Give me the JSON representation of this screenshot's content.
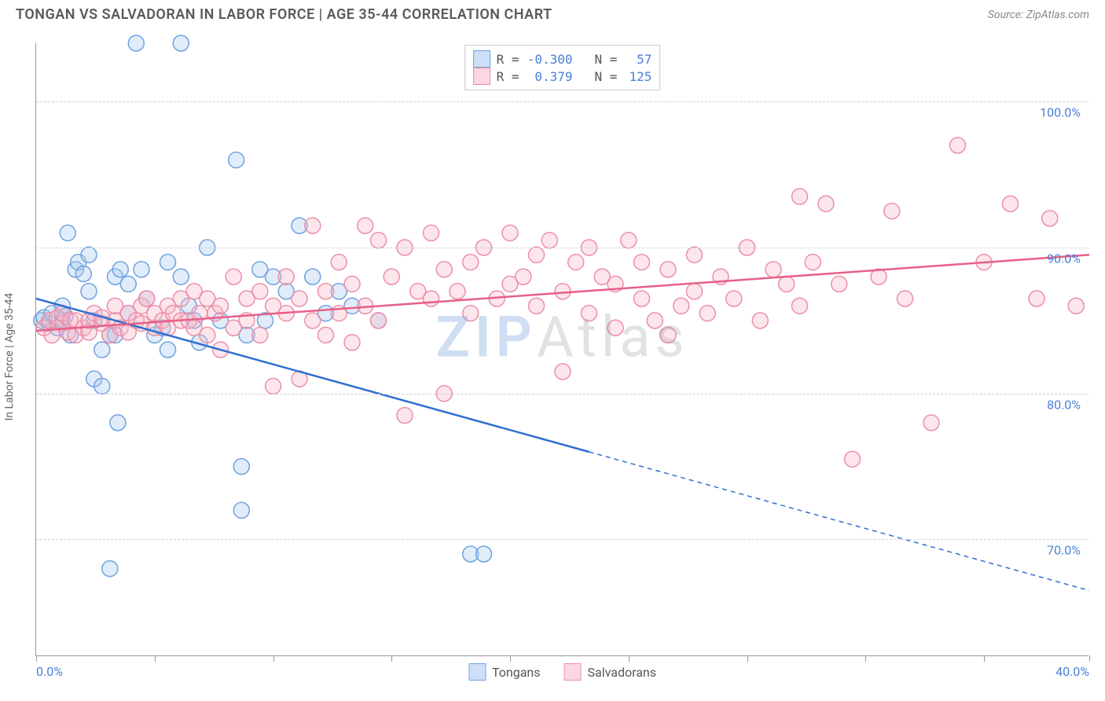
{
  "title": "TONGAN VS SALVADORAN IN LABOR FORCE | AGE 35-44 CORRELATION CHART",
  "source": "Source: ZipAtlas.com",
  "ylabel": "In Labor Force | Age 35-44",
  "watermark_z": "ZIP",
  "watermark_rest": "Atlas",
  "chart": {
    "type": "scatter",
    "background_color": "#ffffff",
    "grid_color": "#d0d0d0",
    "axis_color": "#999999",
    "xlim": [
      0,
      40
    ],
    "ylim": [
      62,
      104
    ],
    "xtick_positions": [
      0,
      4.5,
      9,
      13.5,
      18,
      22.5,
      27,
      31.5,
      36,
      40
    ],
    "xtick_labels": {
      "0": "0.0%",
      "40": "40.0%"
    },
    "ytick_positions": [
      70,
      80,
      90,
      100
    ],
    "ytick_labels": [
      "70.0%",
      "80.0%",
      "90.0%",
      "100.0%"
    ],
    "tick_label_color": "#4a7fd8",
    "tick_label_fontsize": 16,
    "marker_radius": 10,
    "series": [
      {
        "name": "Tongans",
        "color_fill": "#a9c8f0",
        "color_stroke": "#6fa3e0",
        "legend_sq_fill": "#cde0f7",
        "legend_sq_stroke": "#6fa3e0",
        "R": "-0.300",
        "N": "57",
        "trend": {
          "x1": 0,
          "y1": 86.5,
          "x2": 21,
          "y2": 76,
          "dash_to_x": 40,
          "dash_to_y": 66.5,
          "color": "#2f6fd0",
          "width": 2.5
        },
        "points": [
          [
            0.2,
            85.0
          ],
          [
            0.3,
            85.2
          ],
          [
            0.5,
            84.8
          ],
          [
            0.6,
            85.5
          ],
          [
            0.8,
            84.5
          ],
          [
            1.0,
            85.0
          ],
          [
            1.0,
            86.0
          ],
          [
            1.1,
            85.3
          ],
          [
            1.2,
            91.0
          ],
          [
            1.3,
            84.0
          ],
          [
            1.5,
            88.5
          ],
          [
            1.6,
            89.0
          ],
          [
            1.8,
            88.2
          ],
          [
            2.0,
            87.0
          ],
          [
            2.0,
            89.5
          ],
          [
            2.2,
            85.0
          ],
          [
            2.2,
            81.0
          ],
          [
            2.5,
            80.5
          ],
          [
            2.5,
            83.0
          ],
          [
            2.8,
            84.0
          ],
          [
            3.0,
            84.0
          ],
          [
            3.0,
            88.0
          ],
          [
            3.2,
            88.5
          ],
          [
            3.5,
            87.5
          ],
          [
            3.5,
            85.5
          ],
          [
            3.1,
            78.0
          ],
          [
            2.8,
            68.0
          ],
          [
            3.8,
            104.0
          ],
          [
            4.0,
            88.5
          ],
          [
            4.2,
            86.5
          ],
          [
            4.5,
            84.0
          ],
          [
            4.8,
            84.5
          ],
          [
            5.0,
            83.0
          ],
          [
            5.0,
            89.0
          ],
          [
            5.5,
            88.0
          ],
          [
            5.5,
            104.0
          ],
          [
            5.8,
            86.0
          ],
          [
            6.0,
            85.0
          ],
          [
            6.2,
            83.5
          ],
          [
            6.5,
            90.0
          ],
          [
            7.0,
            85.0
          ],
          [
            7.6,
            96.0
          ],
          [
            7.8,
            72.0
          ],
          [
            7.8,
            75.0
          ],
          [
            8.0,
            84.0
          ],
          [
            8.5,
            88.5
          ],
          [
            8.7,
            85.0
          ],
          [
            9.0,
            88.0
          ],
          [
            9.5,
            87.0
          ],
          [
            10.0,
            91.5
          ],
          [
            10.5,
            88.0
          ],
          [
            11.0,
            85.5
          ],
          [
            11.5,
            87.0
          ],
          [
            12.0,
            86.0
          ],
          [
            13.0,
            85.0
          ],
          [
            16.5,
            69.0
          ],
          [
            17.0,
            69.0
          ]
        ]
      },
      {
        "name": "Salvadorans",
        "color_fill": "#f7b8c8",
        "color_stroke": "#ec8fa8",
        "legend_sq_fill": "#fcd8e2",
        "legend_sq_stroke": "#ec8fa8",
        "R": "0.379",
        "N": "125",
        "trend": {
          "x1": 0,
          "y1": 84.3,
          "x2": 40,
          "y2": 89.5,
          "color": "#e85f87",
          "width": 2.5
        },
        "points": [
          [
            0.3,
            84.5
          ],
          [
            0.5,
            85.0
          ],
          [
            0.6,
            84.0
          ],
          [
            0.8,
            85.2
          ],
          [
            1.0,
            84.8
          ],
          [
            1.0,
            85.5
          ],
          [
            1.2,
            84.2
          ],
          [
            1.3,
            85.0
          ],
          [
            1.5,
            85.0
          ],
          [
            1.5,
            84.0
          ],
          [
            1.8,
            84.5
          ],
          [
            2.0,
            85.0
          ],
          [
            2.0,
            84.2
          ],
          [
            2.2,
            85.5
          ],
          [
            2.5,
            84.8
          ],
          [
            2.5,
            85.2
          ],
          [
            2.8,
            84.0
          ],
          [
            3.0,
            85.0
          ],
          [
            3.0,
            86.0
          ],
          [
            3.2,
            84.5
          ],
          [
            3.5,
            85.5
          ],
          [
            3.5,
            84.2
          ],
          [
            3.8,
            85.0
          ],
          [
            4.0,
            84.8
          ],
          [
            4.0,
            86.0
          ],
          [
            4.2,
            86.5
          ],
          [
            4.5,
            84.5
          ],
          [
            4.5,
            85.5
          ],
          [
            4.8,
            85.0
          ],
          [
            5.0,
            86.0
          ],
          [
            5.0,
            84.5
          ],
          [
            5.2,
            85.5
          ],
          [
            5.5,
            85.0
          ],
          [
            5.5,
            86.5
          ],
          [
            5.8,
            85.0
          ],
          [
            6.0,
            87.0
          ],
          [
            6.0,
            84.5
          ],
          [
            6.2,
            85.5
          ],
          [
            6.5,
            86.5
          ],
          [
            6.5,
            84.0
          ],
          [
            6.8,
            85.5
          ],
          [
            7.0,
            86.0
          ],
          [
            7.0,
            83.0
          ],
          [
            7.5,
            88.0
          ],
          [
            7.5,
            84.5
          ],
          [
            8.0,
            86.5
          ],
          [
            8.0,
            85.0
          ],
          [
            8.5,
            87.0
          ],
          [
            8.5,
            84.0
          ],
          [
            9.0,
            86.0
          ],
          [
            9.0,
            80.5
          ],
          [
            9.5,
            85.5
          ],
          [
            9.5,
            88.0
          ],
          [
            10.0,
            81.0
          ],
          [
            10.0,
            86.5
          ],
          [
            10.5,
            85.0
          ],
          [
            10.5,
            91.5
          ],
          [
            11.0,
            87.0
          ],
          [
            11.0,
            84.0
          ],
          [
            11.5,
            89.0
          ],
          [
            11.5,
            85.5
          ],
          [
            12.0,
            87.5
          ],
          [
            12.0,
            83.5
          ],
          [
            12.5,
            91.5
          ],
          [
            12.5,
            86.0
          ],
          [
            13.0,
            90.5
          ],
          [
            13.0,
            85.0
          ],
          [
            13.5,
            88.0
          ],
          [
            14.0,
            78.5
          ],
          [
            14.0,
            90.0
          ],
          [
            14.5,
            87.0
          ],
          [
            15.0,
            86.5
          ],
          [
            15.0,
            91.0
          ],
          [
            15.5,
            88.5
          ],
          [
            15.5,
            80.0
          ],
          [
            16.0,
            87.0
          ],
          [
            16.5,
            89.0
          ],
          [
            16.5,
            85.5
          ],
          [
            17.0,
            90.0
          ],
          [
            17.5,
            86.5
          ],
          [
            18.0,
            91.0
          ],
          [
            18.0,
            87.5
          ],
          [
            18.5,
            88.0
          ],
          [
            19.0,
            89.5
          ],
          [
            19.0,
            86.0
          ],
          [
            19.5,
            90.5
          ],
          [
            20.0,
            87.0
          ],
          [
            20.0,
            81.5
          ],
          [
            20.5,
            89.0
          ],
          [
            21.0,
            85.5
          ],
          [
            21.0,
            90.0
          ],
          [
            21.5,
            88.0
          ],
          [
            22.0,
            87.5
          ],
          [
            22.0,
            84.5
          ],
          [
            22.5,
            90.5
          ],
          [
            23.0,
            86.5
          ],
          [
            23.0,
            89.0
          ],
          [
            23.5,
            85.0
          ],
          [
            24.0,
            88.5
          ],
          [
            24.0,
            84.0
          ],
          [
            24.5,
            86.0
          ],
          [
            25.0,
            89.5
          ],
          [
            25.0,
            87.0
          ],
          [
            25.5,
            85.5
          ],
          [
            26.0,
            88.0
          ],
          [
            26.5,
            86.5
          ],
          [
            27.0,
            90.0
          ],
          [
            27.5,
            85.0
          ],
          [
            28.0,
            88.5
          ],
          [
            28.5,
            87.5
          ],
          [
            29.0,
            93.5
          ],
          [
            29.0,
            86.0
          ],
          [
            29.5,
            89.0
          ],
          [
            30.0,
            93.0
          ],
          [
            30.5,
            87.5
          ],
          [
            31.0,
            75.5
          ],
          [
            32.0,
            88.0
          ],
          [
            32.5,
            92.5
          ],
          [
            33.0,
            86.5
          ],
          [
            34.0,
            78.0
          ],
          [
            35.0,
            97.0
          ],
          [
            36.0,
            89.0
          ],
          [
            37.0,
            93.0
          ],
          [
            38.0,
            86.5
          ],
          [
            38.5,
            92.0
          ],
          [
            39.5,
            86.0
          ]
        ]
      }
    ]
  },
  "legend_top": {
    "r_label": "R =",
    "n_label": "N =",
    "text_color": "#555",
    "value_color": "#4a7fd8"
  },
  "legend_bottom_labels": [
    "Tongans",
    "Salvadorans"
  ]
}
